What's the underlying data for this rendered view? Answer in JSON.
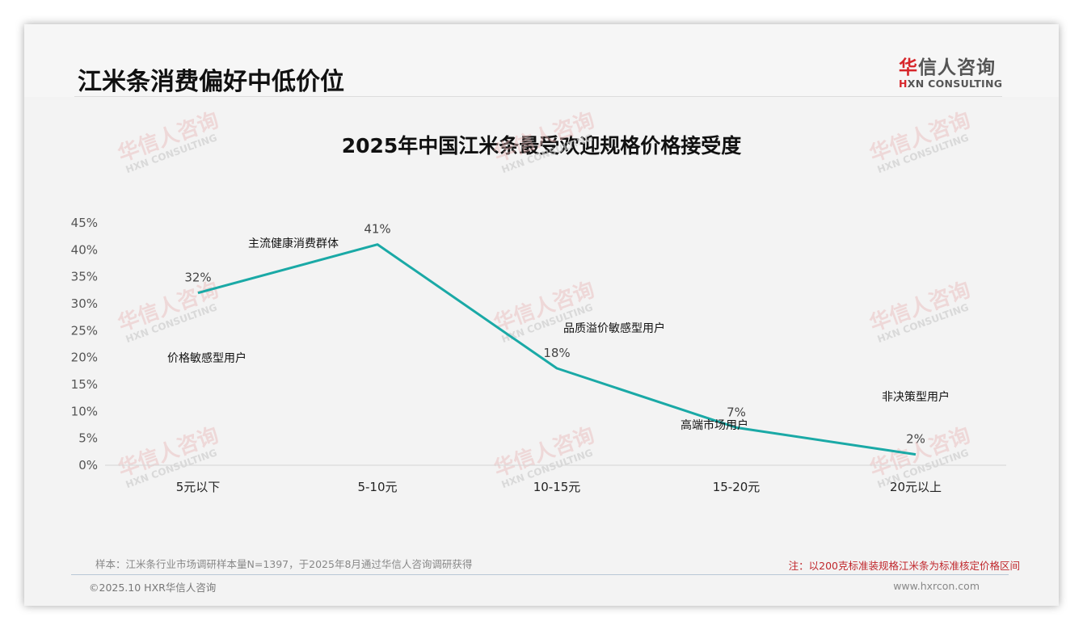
{
  "header": {
    "page_title": "江米条消费偏好中低价位",
    "logo_cn_first": "华",
    "logo_cn_rest": "信人咨询",
    "logo_en_first": "H",
    "logo_en_rest": "XN CONSULTING"
  },
  "chart_title": "2025年中国江米条最受欢迎规格价格接受度",
  "watermark": {
    "cn": "华信人咨询",
    "en": "HXN CONSULTING"
  },
  "chart_data": {
    "type": "line",
    "title": "2025年中国江米条最受欢迎规格价格接受度",
    "xlabel": "",
    "ylabel": "",
    "categories": [
      "5元以下",
      "5-10元",
      "10-15元",
      "15-20元",
      "20元以上"
    ],
    "values": [
      32,
      41,
      18,
      7,
      2
    ],
    "value_labels": [
      "32%",
      "41%",
      "18%",
      "7%",
      "2%"
    ],
    "ylim": [
      0,
      45
    ],
    "yticks": [
      "0%",
      "5%",
      "10%",
      "15%",
      "20%",
      "25%",
      "30%",
      "35%",
      "40%",
      "45%"
    ],
    "grid": false,
    "legend": "none",
    "line_color": "#1aa9a6",
    "annotations": [
      {
        "category": "5元以下",
        "text": "价格敏感型用户"
      },
      {
        "category": "5-10元",
        "text": "主流健康消费群体"
      },
      {
        "category": "10-15元",
        "text": "品质溢价敏感型用户"
      },
      {
        "category": "15-20元",
        "text": "高端市场用户"
      },
      {
        "category": "20元以上",
        "text": "非决策型用户"
      }
    ]
  },
  "footer": {
    "source": "样本：江米条行业市场调研样本量N=1397，于2025年8月通过华信人咨询调研获得",
    "note": "注：以200克标准装规格江米条为标准核定价格区间",
    "copyright": "©2025.10 HXR华信人咨询",
    "website": "www.hxrcon.com"
  }
}
